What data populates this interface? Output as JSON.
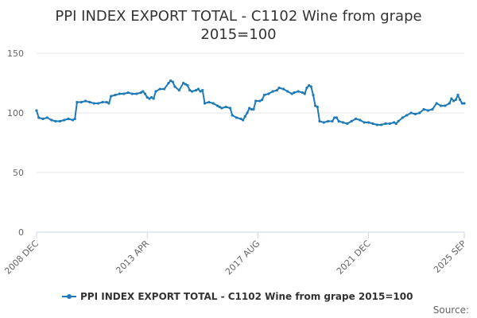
{
  "chart_data": {
    "type": "line",
    "title_lines": [
      "PPI INDEX EXPORT TOTAL - C1102 Wine from grape",
      "2015=100"
    ],
    "xlabel": "",
    "ylabel": "",
    "ylim": [
      0,
      150
    ],
    "y_ticks": [
      "0",
      "50",
      "100",
      "150"
    ],
    "x_ticks": [
      {
        "label": "2008 DEC",
        "date": "2008-12"
      },
      {
        "label": "2013 APR",
        "date": "2013-04"
      },
      {
        "label": "2017 AUG",
        "date": "2017-08"
      },
      {
        "label": "2021 DEC",
        "date": "2021-12"
      },
      {
        "label": "2025 SEP",
        "date": "2025-09"
      }
    ],
    "grid": true,
    "legend_position": "bottom",
    "source_label": "Source:",
    "series": [
      {
        "name": "PPI INDEX EXPORT TOTAL - C1102 Wine from grape 2015=100",
        "color": "#1f7ab8",
        "points": [
          [
            "2008-12",
            102
          ],
          [
            "2009-01",
            96
          ],
          [
            "2009-03",
            95
          ],
          [
            "2009-05",
            96
          ],
          [
            "2009-07",
            94
          ],
          [
            "2009-09",
            93
          ],
          [
            "2009-11",
            93
          ],
          [
            "2010-01",
            94
          ],
          [
            "2010-03",
            95
          ],
          [
            "2010-05",
            94
          ],
          [
            "2010-06",
            95
          ],
          [
            "2010-07",
            109
          ],
          [
            "2010-09",
            109
          ],
          [
            "2010-11",
            110
          ],
          [
            "2011-01",
            109
          ],
          [
            "2011-03",
            108
          ],
          [
            "2011-05",
            108
          ],
          [
            "2011-07",
            109
          ],
          [
            "2011-09",
            109
          ],
          [
            "2011-10",
            108
          ],
          [
            "2011-11",
            114
          ],
          [
            "2012-01",
            115
          ],
          [
            "2012-03",
            116
          ],
          [
            "2012-05",
            116
          ],
          [
            "2012-07",
            117
          ],
          [
            "2012-09",
            116
          ],
          [
            "2012-11",
            116
          ],
          [
            "2013-01",
            117
          ],
          [
            "2013-02",
            118
          ],
          [
            "2013-03",
            116
          ],
          [
            "2013-04",
            113
          ],
          [
            "2013-05",
            112
          ],
          [
            "2013-06",
            113
          ],
          [
            "2013-07",
            112
          ],
          [
            "2013-08",
            118
          ],
          [
            "2013-10",
            120
          ],
          [
            "2013-12",
            120
          ],
          [
            "2014-02",
            125
          ],
          [
            "2014-03",
            127
          ],
          [
            "2014-04",
            126
          ],
          [
            "2014-05",
            122
          ],
          [
            "2014-07",
            119
          ],
          [
            "2014-09",
            125
          ],
          [
            "2014-10",
            124
          ],
          [
            "2014-11",
            123
          ],
          [
            "2014-12",
            119
          ],
          [
            "2015-01",
            118
          ],
          [
            "2015-03",
            119
          ],
          [
            "2015-04",
            120
          ],
          [
            "2015-05",
            118
          ],
          [
            "2015-06",
            119
          ],
          [
            "2015-07",
            108
          ],
          [
            "2015-09",
            109
          ],
          [
            "2015-11",
            108
          ],
          [
            "2016-01",
            106
          ],
          [
            "2016-02",
            105
          ],
          [
            "2016-03",
            104
          ],
          [
            "2016-05",
            105
          ],
          [
            "2016-07",
            104
          ],
          [
            "2016-08",
            98
          ],
          [
            "2016-10",
            96
          ],
          [
            "2016-12",
            95
          ],
          [
            "2017-01",
            94
          ],
          [
            "2017-02",
            97
          ],
          [
            "2017-03",
            100
          ],
          [
            "2017-04",
            104
          ],
          [
            "2017-05",
            103
          ],
          [
            "2017-06",
            103
          ],
          [
            "2017-07",
            110
          ],
          [
            "2017-09",
            110
          ],
          [
            "2017-10",
            111
          ],
          [
            "2017-11",
            115
          ],
          [
            "2018-01",
            116
          ],
          [
            "2018-03",
            118
          ],
          [
            "2018-05",
            119
          ],
          [
            "2018-06",
            121
          ],
          [
            "2018-08",
            120
          ],
          [
            "2018-10",
            118
          ],
          [
            "2018-12",
            116
          ],
          [
            "2019-01",
            117
          ],
          [
            "2019-03",
            118
          ],
          [
            "2019-05",
            117
          ],
          [
            "2019-06",
            116
          ],
          [
            "2019-07",
            121
          ],
          [
            "2019-08",
            123
          ],
          [
            "2019-09",
            122
          ],
          [
            "2019-10",
            115
          ],
          [
            "2019-11",
            106
          ],
          [
            "2019-12",
            105
          ],
          [
            "2020-01",
            93
          ],
          [
            "2020-03",
            92
          ],
          [
            "2020-05",
            93
          ],
          [
            "2020-07",
            93
          ],
          [
            "2020-08",
            96
          ],
          [
            "2020-09",
            96
          ],
          [
            "2020-10",
            93
          ],
          [
            "2020-12",
            92
          ],
          [
            "2021-02",
            91
          ],
          [
            "2021-04",
            93
          ],
          [
            "2021-06",
            95
          ],
          [
            "2021-08",
            94
          ],
          [
            "2021-10",
            92
          ],
          [
            "2021-12",
            92
          ],
          [
            "2022-02",
            91
          ],
          [
            "2022-04",
            90
          ],
          [
            "2022-06",
            90
          ],
          [
            "2022-08",
            91
          ],
          [
            "2022-10",
            91
          ],
          [
            "2022-12",
            92
          ],
          [
            "2023-01",
            91
          ],
          [
            "2023-02",
            93
          ],
          [
            "2023-04",
            96
          ],
          [
            "2023-06",
            98
          ],
          [
            "2023-08",
            100
          ],
          [
            "2023-10",
            99
          ],
          [
            "2023-12",
            100
          ],
          [
            "2024-02",
            103
          ],
          [
            "2024-04",
            102
          ],
          [
            "2024-06",
            103
          ],
          [
            "2024-08",
            108
          ],
          [
            "2024-10",
            106
          ],
          [
            "2024-12",
            106
          ],
          [
            "2025-02",
            108
          ],
          [
            "2025-03",
            112
          ],
          [
            "2025-04",
            110
          ],
          [
            "2025-05",
            111
          ],
          [
            "2025-06",
            115
          ],
          [
            "2025-07",
            111
          ],
          [
            "2025-08",
            108
          ],
          [
            "2025-09",
            108
          ]
        ]
      }
    ]
  }
}
